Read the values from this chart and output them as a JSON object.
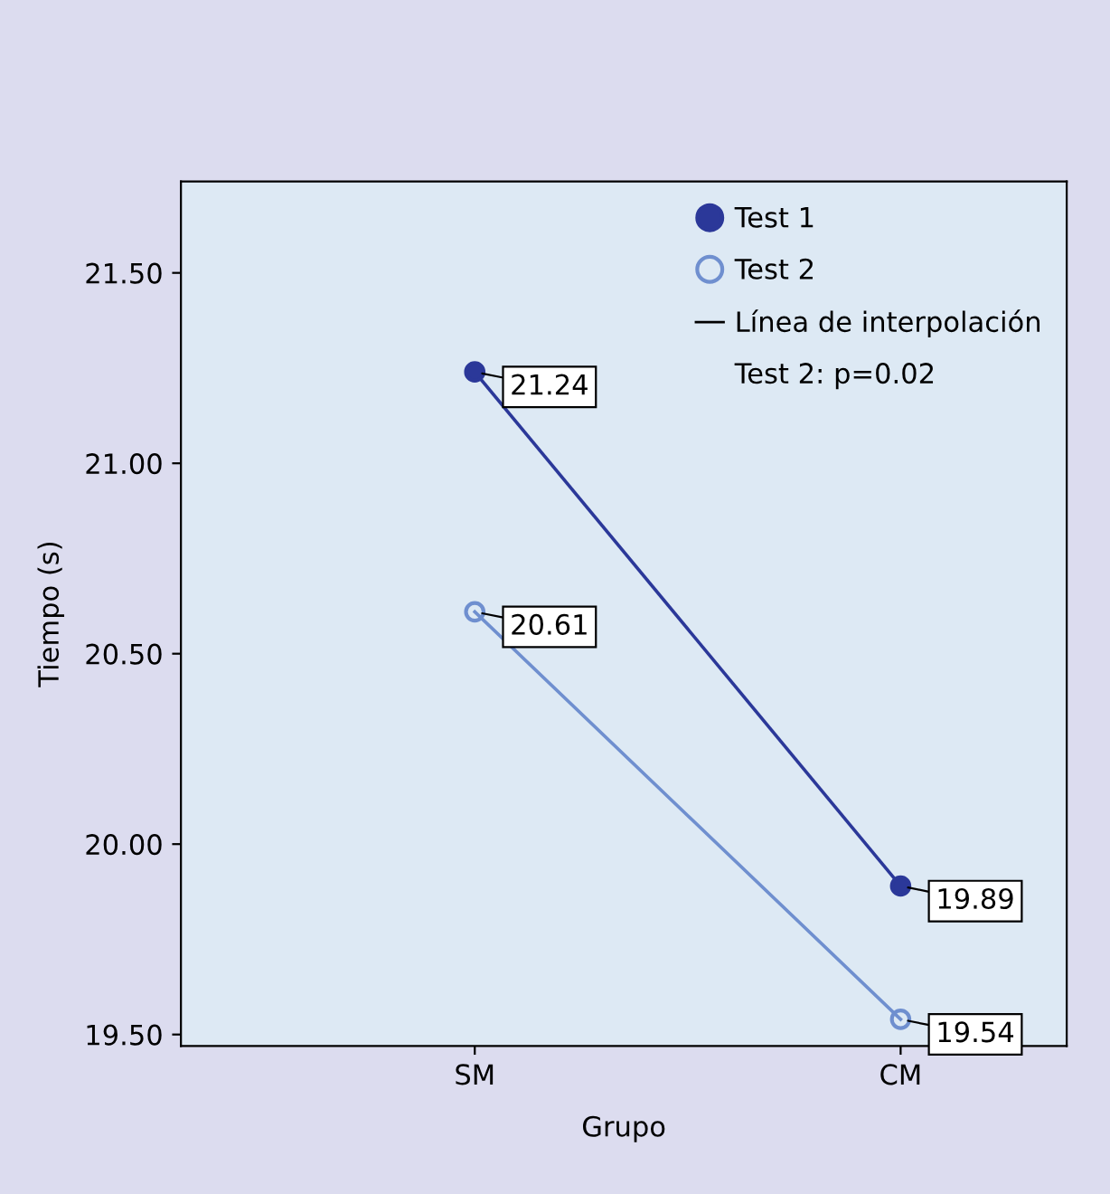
{
  "chart_data": {
    "type": "line",
    "xlabel": "Grupo",
    "ylabel": "Tiempo (s)",
    "categories": [
      "SM",
      "CM"
    ],
    "series": [
      {
        "name": "Test 1",
        "color": "#2b3899",
        "values": [
          21.24,
          19.89
        ],
        "value_labels": [
          "21.24",
          "19.89"
        ],
        "marker": "circle"
      },
      {
        "name": "Test 2",
        "color": "#6f8fcf",
        "values": [
          20.61,
          19.54
        ],
        "value_labels": [
          "20.61",
          "19.54"
        ],
        "marker": "circle"
      }
    ],
    "ylim": [
      19.47,
      21.74
    ],
    "yticks": [
      {
        "value": 19.5,
        "label": "19.50"
      },
      {
        "value": 20.0,
        "label": "20.00"
      },
      {
        "value": 20.5,
        "label": "20.50"
      },
      {
        "value": 21.0,
        "label": "21.00"
      },
      {
        "value": 21.5,
        "label": "21.50"
      }
    ],
    "annotations": [
      "Línea de interpolación",
      "Test 2: p=0.02"
    ],
    "legend": "top right",
    "grid": false,
    "line_style": "solid"
  }
}
